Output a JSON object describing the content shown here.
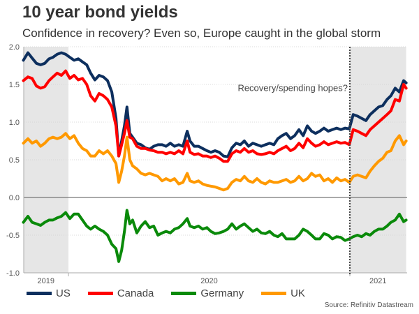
{
  "header": {
    "title": "10 year bond yields",
    "subtitle": "Confidence in recovery? Even so, Europe caught in the global storm"
  },
  "source": "Source: Refinitiv Datastream",
  "chart_data": {
    "type": "line",
    "title": "10 year bond yields",
    "subtitle": "Confidence in recovery? Even so, Europe caught in the global storm",
    "xlabel": "",
    "ylabel": "",
    "x_unit": "year (fractional)",
    "xlim": [
      2019.84,
      2021.2
    ],
    "ylim": [
      -1.0,
      2.0
    ],
    "yticks": [
      2.0,
      1.5,
      1.0,
      0.5,
      0.0,
      -0.5,
      -1.0
    ],
    "ytick_labels": [
      "2.0",
      "1.5",
      "1.0",
      "0.5",
      "0.0",
      "-0.5",
      "-1.0"
    ],
    "xtick_labels": [
      {
        "label": "2019",
        "x": 2019.92
      },
      {
        "label": "2020",
        "x": 2020.5
      },
      {
        "label": "2021",
        "x": 2021.1
      }
    ],
    "year_boundaries": [
      2020.0,
      2021.0
    ],
    "shaded_ranges": [
      [
        2019.84,
        2020.0
      ],
      [
        2021.0,
        2021.2
      ]
    ],
    "grid": true,
    "legend_position": "bottom",
    "annotations": [
      {
        "text": "Recovery/spending hopes?",
        "x": 2021.0,
        "y": 1.45,
        "type": "vertical-dotted-line"
      }
    ],
    "series": [
      {
        "name": "US",
        "color": "#0d2f5e",
        "x": [
          2019.84,
          2019.856,
          2019.871,
          2019.886,
          2019.901,
          2019.916,
          2019.931,
          2019.945,
          2019.96,
          2019.975,
          2019.99,
          2020.005,
          2020.02,
          2020.035,
          2020.05,
          2020.065,
          2020.079,
          2020.094,
          2020.109,
          2020.124,
          2020.139,
          2020.154,
          2020.169,
          2020.179,
          2020.189,
          2020.199,
          2020.208,
          2020.218,
          2020.228,
          2020.243,
          2020.258,
          2020.273,
          2020.288,
          2020.303,
          2020.318,
          2020.333,
          2020.347,
          2020.362,
          2020.377,
          2020.392,
          2020.407,
          2020.422,
          2020.432,
          2020.447,
          2020.462,
          2020.477,
          2020.492,
          2020.506,
          2020.521,
          2020.536,
          2020.551,
          2020.566,
          2020.581,
          2020.596,
          2020.611,
          2020.625,
          2020.64,
          2020.655,
          2020.67,
          2020.685,
          2020.7,
          2020.715,
          2020.73,
          2020.744,
          2020.759,
          2020.774,
          2020.789,
          2020.804,
          2020.819,
          2020.834,
          2020.849,
          2020.864,
          2020.878,
          2020.893,
          2020.908,
          2020.923,
          2020.938,
          2020.953,
          2020.968,
          2020.983,
          2020.998,
          2021.012,
          2021.027,
          2021.042,
          2021.057,
          2021.072,
          2021.087,
          2021.102,
          2021.117,
          2021.132,
          2021.146,
          2021.161,
          2021.176,
          2021.191,
          2021.2
        ],
        "values": [
          1.82,
          1.92,
          1.85,
          1.78,
          1.76,
          1.78,
          1.84,
          1.86,
          1.9,
          1.92,
          1.9,
          1.86,
          1.82,
          1.84,
          1.8,
          1.76,
          1.65,
          1.56,
          1.62,
          1.6,
          1.55,
          1.4,
          1.05,
          0.55,
          0.75,
          0.95,
          1.2,
          0.85,
          0.8,
          0.72,
          0.7,
          0.66,
          0.64,
          0.68,
          0.7,
          0.7,
          0.68,
          0.72,
          0.68,
          0.7,
          0.68,
          0.88,
          0.75,
          0.68,
          0.68,
          0.65,
          0.62,
          0.6,
          0.62,
          0.6,
          0.55,
          0.54,
          0.66,
          0.72,
          0.7,
          0.75,
          0.68,
          0.72,
          0.7,
          0.68,
          0.7,
          0.72,
          0.7,
          0.78,
          0.82,
          0.85,
          0.78,
          0.82,
          0.9,
          0.82,
          0.95,
          0.88,
          0.85,
          0.88,
          0.92,
          0.88,
          0.9,
          0.92,
          0.9,
          0.92,
          0.91,
          1.1,
          1.08,
          1.05,
          1.02,
          1.1,
          1.15,
          1.2,
          1.22,
          1.3,
          1.35,
          1.45,
          1.4,
          1.55,
          1.52
        ]
      },
      {
        "name": "Canada",
        "color": "#ff0000",
        "x": [
          2019.84,
          2019.856,
          2019.871,
          2019.886,
          2019.901,
          2019.916,
          2019.931,
          2019.945,
          2019.96,
          2019.975,
          2019.99,
          2020.005,
          2020.02,
          2020.035,
          2020.05,
          2020.065,
          2020.079,
          2020.094,
          2020.109,
          2020.124,
          2020.139,
          2020.154,
          2020.169,
          2020.179,
          2020.189,
          2020.199,
          2020.208,
          2020.218,
          2020.228,
          2020.243,
          2020.258,
          2020.273,
          2020.288,
          2020.303,
          2020.318,
          2020.333,
          2020.347,
          2020.362,
          2020.377,
          2020.392,
          2020.407,
          2020.422,
          2020.432,
          2020.447,
          2020.462,
          2020.477,
          2020.492,
          2020.506,
          2020.521,
          2020.536,
          2020.551,
          2020.566,
          2020.581,
          2020.596,
          2020.611,
          2020.625,
          2020.64,
          2020.655,
          2020.67,
          2020.685,
          2020.7,
          2020.715,
          2020.73,
          2020.744,
          2020.759,
          2020.774,
          2020.789,
          2020.804,
          2020.819,
          2020.834,
          2020.849,
          2020.864,
          2020.878,
          2020.893,
          2020.908,
          2020.923,
          2020.938,
          2020.953,
          2020.968,
          2020.983,
          2020.998,
          2021.012,
          2021.027,
          2021.042,
          2021.057,
          2021.072,
          2021.087,
          2021.102,
          2021.117,
          2021.132,
          2021.146,
          2021.161,
          2021.176,
          2021.191,
          2021.2
        ],
        "values": [
          1.55,
          1.6,
          1.58,
          1.48,
          1.45,
          1.47,
          1.55,
          1.6,
          1.65,
          1.62,
          1.68,
          1.58,
          1.62,
          1.56,
          1.58,
          1.5,
          1.35,
          1.28,
          1.38,
          1.35,
          1.3,
          1.2,
          0.95,
          0.55,
          0.7,
          0.85,
          1.02,
          0.8,
          0.78,
          0.68,
          0.65,
          0.65,
          0.63,
          0.62,
          0.6,
          0.6,
          0.58,
          0.6,
          0.58,
          0.62,
          0.58,
          0.75,
          0.6,
          0.57,
          0.58,
          0.55,
          0.55,
          0.53,
          0.55,
          0.52,
          0.48,
          0.48,
          0.58,
          0.62,
          0.6,
          0.65,
          0.6,
          0.62,
          0.58,
          0.57,
          0.58,
          0.6,
          0.58,
          0.62,
          0.65,
          0.68,
          0.62,
          0.65,
          0.72,
          0.66,
          0.78,
          0.72,
          0.68,
          0.7,
          0.74,
          0.7,
          0.72,
          0.74,
          0.72,
          0.73,
          0.7,
          0.9,
          0.88,
          0.85,
          0.82,
          0.9,
          0.95,
          1.0,
          1.05,
          1.1,
          1.15,
          1.3,
          1.28,
          1.5,
          1.45
        ]
      },
      {
        "name": "Germany",
        "color": "#0a8a0a",
        "x": [
          2019.84,
          2019.856,
          2019.871,
          2019.886,
          2019.901,
          2019.916,
          2019.931,
          2019.945,
          2019.96,
          2019.975,
          2019.99,
          2020.005,
          2020.02,
          2020.035,
          2020.05,
          2020.065,
          2020.079,
          2020.094,
          2020.109,
          2020.124,
          2020.139,
          2020.154,
          2020.169,
          2020.179,
          2020.189,
          2020.199,
          2020.208,
          2020.218,
          2020.228,
          2020.243,
          2020.258,
          2020.273,
          2020.288,
          2020.303,
          2020.318,
          2020.333,
          2020.347,
          2020.362,
          2020.377,
          2020.392,
          2020.407,
          2020.422,
          2020.432,
          2020.447,
          2020.462,
          2020.477,
          2020.492,
          2020.506,
          2020.521,
          2020.536,
          2020.551,
          2020.566,
          2020.581,
          2020.596,
          2020.611,
          2020.625,
          2020.64,
          2020.655,
          2020.67,
          2020.685,
          2020.7,
          2020.715,
          2020.73,
          2020.744,
          2020.759,
          2020.774,
          2020.789,
          2020.804,
          2020.819,
          2020.834,
          2020.849,
          2020.864,
          2020.878,
          2020.893,
          2020.908,
          2020.923,
          2020.938,
          2020.953,
          2020.968,
          2020.983,
          2020.998,
          2021.012,
          2021.027,
          2021.042,
          2021.057,
          2021.072,
          2021.087,
          2021.102,
          2021.117,
          2021.132,
          2021.146,
          2021.161,
          2021.176,
          2021.191,
          2021.2
        ],
        "values": [
          -0.33,
          -0.25,
          -0.33,
          -0.35,
          -0.37,
          -0.33,
          -0.3,
          -0.3,
          -0.27,
          -0.25,
          -0.2,
          -0.28,
          -0.22,
          -0.22,
          -0.3,
          -0.38,
          -0.42,
          -0.38,
          -0.42,
          -0.45,
          -0.5,
          -0.62,
          -0.68,
          -0.85,
          -0.7,
          -0.45,
          -0.17,
          -0.35,
          -0.3,
          -0.47,
          -0.38,
          -0.32,
          -0.4,
          -0.38,
          -0.5,
          -0.47,
          -0.45,
          -0.47,
          -0.42,
          -0.4,
          -0.35,
          -0.28,
          -0.38,
          -0.4,
          -0.38,
          -0.42,
          -0.4,
          -0.45,
          -0.48,
          -0.47,
          -0.45,
          -0.42,
          -0.35,
          -0.42,
          -0.38,
          -0.35,
          -0.4,
          -0.45,
          -0.42,
          -0.47,
          -0.48,
          -0.45,
          -0.5,
          -0.52,
          -0.48,
          -0.55,
          -0.55,
          -0.55,
          -0.5,
          -0.42,
          -0.45,
          -0.5,
          -0.55,
          -0.55,
          -0.48,
          -0.5,
          -0.55,
          -0.52,
          -0.53,
          -0.57,
          -0.55,
          -0.52,
          -0.5,
          -0.52,
          -0.48,
          -0.5,
          -0.45,
          -0.42,
          -0.42,
          -0.38,
          -0.33,
          -0.3,
          -0.22,
          -0.32,
          -0.3
        ]
      },
      {
        "name": "UK",
        "color": "#ff9900",
        "x": [
          2019.84,
          2019.856,
          2019.871,
          2019.886,
          2019.901,
          2019.916,
          2019.931,
          2019.945,
          2019.96,
          2019.975,
          2019.99,
          2020.005,
          2020.02,
          2020.035,
          2020.05,
          2020.065,
          2020.079,
          2020.094,
          2020.109,
          2020.124,
          2020.139,
          2020.154,
          2020.169,
          2020.179,
          2020.189,
          2020.199,
          2020.208,
          2020.218,
          2020.228,
          2020.243,
          2020.258,
          2020.273,
          2020.288,
          2020.303,
          2020.318,
          2020.333,
          2020.347,
          2020.362,
          2020.377,
          2020.392,
          2020.407,
          2020.422,
          2020.432,
          2020.447,
          2020.462,
          2020.477,
          2020.492,
          2020.506,
          2020.521,
          2020.536,
          2020.551,
          2020.566,
          2020.581,
          2020.596,
          2020.611,
          2020.625,
          2020.64,
          2020.655,
          2020.67,
          2020.685,
          2020.7,
          2020.715,
          2020.73,
          2020.744,
          2020.759,
          2020.774,
          2020.789,
          2020.804,
          2020.819,
          2020.834,
          2020.849,
          2020.864,
          2020.878,
          2020.893,
          2020.908,
          2020.923,
          2020.938,
          2020.953,
          2020.968,
          2020.983,
          2020.998,
          2021.012,
          2021.027,
          2021.042,
          2021.057,
          2021.072,
          2021.087,
          2021.102,
          2021.117,
          2021.132,
          2021.146,
          2021.161,
          2021.176,
          2021.191,
          2021.2
        ],
        "values": [
          0.72,
          0.78,
          0.72,
          0.75,
          0.68,
          0.72,
          0.78,
          0.8,
          0.78,
          0.8,
          0.85,
          0.78,
          0.82,
          0.72,
          0.65,
          0.62,
          0.55,
          0.55,
          0.62,
          0.58,
          0.62,
          0.55,
          0.45,
          0.2,
          0.35,
          0.55,
          0.8,
          0.5,
          0.42,
          0.38,
          0.32,
          0.3,
          0.32,
          0.3,
          0.28,
          0.22,
          0.25,
          0.22,
          0.25,
          0.18,
          0.2,
          0.32,
          0.22,
          0.2,
          0.22,
          0.18,
          0.16,
          0.15,
          0.14,
          0.12,
          0.1,
          0.12,
          0.2,
          0.24,
          0.22,
          0.28,
          0.22,
          0.2,
          0.25,
          0.2,
          0.18,
          0.22,
          0.2,
          0.2,
          0.22,
          0.24,
          0.2,
          0.22,
          0.28,
          0.22,
          0.25,
          0.32,
          0.28,
          0.3,
          0.22,
          0.25,
          0.2,
          0.26,
          0.22,
          0.24,
          0.2,
          0.28,
          0.3,
          0.28,
          0.26,
          0.35,
          0.42,
          0.48,
          0.52,
          0.6,
          0.62,
          0.75,
          0.82,
          0.7,
          0.75
        ]
      }
    ]
  }
}
